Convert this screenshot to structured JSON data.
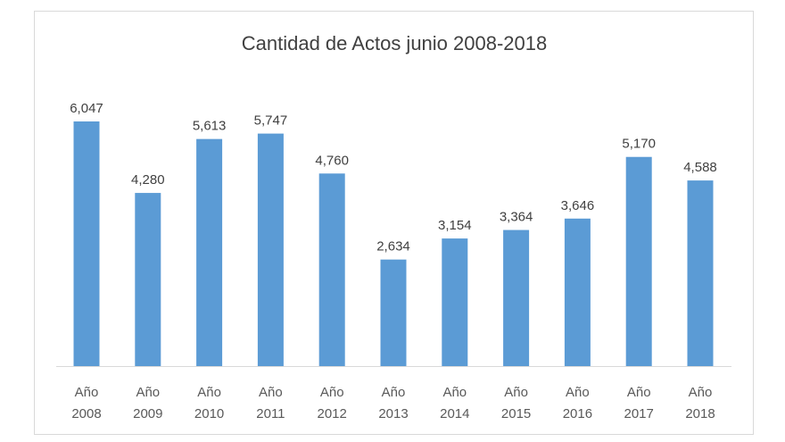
{
  "chart_data": {
    "type": "bar",
    "title": "Cantidad de Actos junio 2008-2018",
    "categories": [
      [
        "Año",
        "2008"
      ],
      [
        "Año",
        "2009"
      ],
      [
        "Año",
        "2010"
      ],
      [
        "Año",
        "2011"
      ],
      [
        "Año",
        "2012"
      ],
      [
        "Año",
        "2013"
      ],
      [
        "Año",
        "2014"
      ],
      [
        "Año",
        "2015"
      ],
      [
        "Año",
        "2016"
      ],
      [
        "Año",
        "2017"
      ],
      [
        "Año",
        "2018"
      ]
    ],
    "values": [
      6047,
      4280,
      5613,
      5747,
      4760,
      2634,
      3154,
      3364,
      3646,
      5170,
      4588
    ],
    "value_labels": [
      "6,047",
      "4,280",
      "5,613",
      "5,747",
      "4,760",
      "2,634",
      "3,154",
      "3,364",
      "3,646",
      "5,170",
      "4,588"
    ],
    "xlabel": "",
    "ylabel": "",
    "ylim": [
      0,
      6047
    ],
    "grid": false,
    "legend": "none",
    "colors": {
      "bar": "#5b9bd5",
      "axis": "#d9d9d9",
      "text": "#404040"
    }
  }
}
